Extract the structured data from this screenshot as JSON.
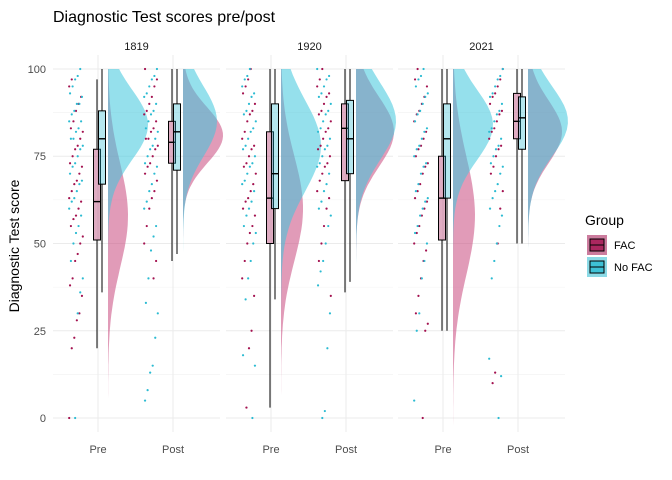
{
  "chart_data": {
    "type": "raincloud",
    "title": "Diagnostic Test scores pre/post",
    "xlabel": "",
    "ylabel": "Diagnostic Test score",
    "ylim": [
      0,
      100
    ],
    "yticks": [
      0,
      25,
      50,
      75,
      100
    ],
    "categories": [
      "Pre",
      "Post"
    ],
    "facets": [
      "1819",
      "1920",
      "2021"
    ],
    "grid": true,
    "legend": {
      "title": "Group",
      "position": "right",
      "entries": [
        {
          "name": "FAC",
          "color": "#a3114f"
        },
        {
          "name": "No FAC",
          "color": "#2bbbd2"
        }
      ]
    },
    "panels": [
      {
        "facet": "1819",
        "boxes": [
          {
            "time": "Pre",
            "group": "FAC",
            "min": 20,
            "q1": 51,
            "median": 62,
            "q3": 77,
            "max": 97
          },
          {
            "time": "Pre",
            "group": "No FAC",
            "min": 36,
            "q1": 67,
            "median": 80,
            "q3": 88,
            "max": 100
          },
          {
            "time": "Post",
            "group": "FAC",
            "min": 45,
            "q1": 73,
            "median": 79,
            "q3": 85,
            "max": 100
          },
          {
            "time": "Post",
            "group": "No FAC",
            "min": 47,
            "q1": 71,
            "median": 82,
            "q3": 90,
            "max": 100
          }
        ],
        "densities": [
          {
            "time": "Pre",
            "group": "FAC",
            "mode": 58,
            "sd": 15,
            "peak": 0.5,
            "lo": 4,
            "hi": 100
          },
          {
            "time": "Pre",
            "group": "No FAC",
            "mode": 84,
            "sd": 10,
            "peak": 1.0,
            "lo": 36,
            "hi": 100
          },
          {
            "time": "Post",
            "group": "FAC",
            "mode": 81,
            "sd": 8,
            "peak": 1.0,
            "lo": 45,
            "hi": 100
          },
          {
            "time": "Post",
            "group": "No FAC",
            "mode": 85,
            "sd": 10,
            "peak": 0.85,
            "lo": 10,
            "hi": 100
          }
        ],
        "points": {
          "Pre": {
            "FAC": [
              0,
              20,
              23,
              28,
              30,
              35,
              38,
              40,
              45,
              47,
              50,
              52,
              55,
              57,
              58,
              60,
              62,
              63,
              65,
              67,
              68,
              70,
              72,
              73,
              75,
              77,
              78,
              80,
              82,
              83,
              85,
              88,
              90,
              92,
              95,
              97
            ],
            "No FAC": [
              0,
              30,
              36,
              40,
              45,
              50,
              53,
              55,
              58,
              60,
              62,
              63,
              65,
              67,
              68,
              70,
              72,
              73,
              75,
              77,
              78,
              80,
              80,
              82,
              83,
              85,
              85,
              87,
              88,
              90,
              90,
              92,
              93,
              95,
              97,
              98,
              100
            ]
          },
          "Post": {
            "FAC": [
              40,
              45,
              50,
              55,
              60,
              63,
              65,
              68,
              70,
              72,
              73,
              75,
              77,
              78,
              80,
              80,
              82,
              83,
              85,
              87,
              88,
              90,
              92,
              95,
              97,
              100
            ],
            "No FAC": [
              5,
              8,
              13,
              15,
              23,
              30,
              33,
              40,
              48,
              52,
              55,
              60,
              62,
              65,
              67,
              70,
              72,
              73,
              75,
              77,
              78,
              80,
              82,
              83,
              85,
              87,
              88,
              90,
              92,
              93,
              95,
              97,
              98,
              100
            ]
          }
        }
      },
      {
        "facet": "1920",
        "boxes": [
          {
            "time": "Pre",
            "group": "FAC",
            "min": 3,
            "q1": 50,
            "median": 63,
            "q3": 82,
            "max": 100
          },
          {
            "time": "Pre",
            "group": "No FAC",
            "min": 34,
            "q1": 60,
            "median": 70,
            "q3": 90,
            "max": 100
          },
          {
            "time": "Post",
            "group": "FAC",
            "min": 36,
            "q1": 68,
            "median": 83,
            "q3": 90,
            "max": 100
          },
          {
            "time": "Post",
            "group": "No FAC",
            "min": 39,
            "q1": 70,
            "median": 80,
            "q3": 91,
            "max": 100
          }
        ],
        "densities": [
          {
            "time": "Pre",
            "group": "FAC",
            "mode": 60,
            "sd": 15,
            "peak": 0.55,
            "lo": -2,
            "hi": 100
          },
          {
            "time": "Pre",
            "group": "No FAC",
            "mode": 78,
            "sd": 13,
            "peak": 1.0,
            "lo": -2,
            "hi": 100
          },
          {
            "time": "Post",
            "group": "FAC",
            "mode": 82,
            "sd": 10,
            "peak": 0.95,
            "lo": 20,
            "hi": 100
          },
          {
            "time": "Post",
            "group": "No FAC",
            "mode": 85,
            "sd": 11,
            "peak": 1.0,
            "lo": -2,
            "hi": 100
          }
        ],
        "points": {
          "Pre": {
            "FAC": [
              3,
              20,
              25,
              35,
              40,
              45,
              50,
              53,
              55,
              58,
              60,
              62,
              63,
              65,
              67,
              70,
              72,
              73,
              75,
              77,
              78,
              80,
              82,
              85,
              87,
              88,
              90,
              93,
              95,
              97,
              100
            ],
            "No FAC": [
              0,
              15,
              18,
              34,
              40,
              45,
              50,
              53,
              55,
              58,
              60,
              62,
              65,
              67,
              68,
              70,
              72,
              73,
              75,
              77,
              78,
              80,
              82,
              83,
              85,
              87,
              88,
              90,
              92,
              93,
              95,
              97,
              98,
              100
            ]
          },
          "Post": {
            "FAC": [
              35,
              45,
              50,
              55,
              60,
              63,
              65,
              68,
              70,
              72,
              73,
              75,
              77,
              78,
              80,
              82,
              83,
              85,
              87,
              88,
              90,
              92,
              93,
              95,
              97,
              100
            ],
            "No FAC": [
              0,
              2,
              20,
              30,
              38,
              42,
              45,
              50,
              55,
              58,
              60,
              62,
              65,
              67,
              70,
              72,
              73,
              75,
              77,
              78,
              80,
              82,
              83,
              85,
              87,
              88,
              90,
              92,
              93,
              95,
              97,
              98,
              100
            ]
          }
        }
      },
      {
        "facet": "2021",
        "boxes": [
          {
            "time": "Pre",
            "group": "FAC",
            "min": 25,
            "q1": 51,
            "median": 63,
            "q3": 75,
            "max": 100
          },
          {
            "time": "Pre",
            "group": "No FAC",
            "min": 25,
            "q1": 63,
            "median": 80,
            "q3": 90,
            "max": 100
          },
          {
            "time": "Post",
            "group": "FAC",
            "min": 50,
            "q1": 80,
            "median": 85,
            "q3": 93,
            "max": 100
          },
          {
            "time": "Post",
            "group": "No FAC",
            "min": 50,
            "q1": 77,
            "median": 86,
            "q3": 92,
            "max": 100
          }
        ],
        "densities": [
          {
            "time": "Pre",
            "group": "FAC",
            "mode": 58,
            "sd": 17,
            "peak": 0.55,
            "lo": -4,
            "hi": 100
          },
          {
            "time": "Pre",
            "group": "No FAC",
            "mode": 84,
            "sd": 10,
            "peak": 1.0,
            "lo": -4,
            "hi": 100
          },
          {
            "time": "Post",
            "group": "FAC",
            "mode": 82,
            "sd": 9,
            "peak": 0.85,
            "lo": 41,
            "hi": 100
          },
          {
            "time": "Post",
            "group": "No FAC",
            "mode": 85,
            "sd": 10,
            "peak": 1.0,
            "lo": -4,
            "hi": 100
          }
        ],
        "points": {
          "Pre": {
            "FAC": [
              0,
              25,
              27,
              30,
              35,
              40,
              45,
              48,
              50,
              53,
              55,
              58,
              60,
              62,
              63,
              65,
              67,
              70,
              72,
              73,
              75,
              77,
              78,
              80,
              82,
              85,
              87,
              88,
              90,
              92,
              95,
              97,
              100
            ],
            "No FAC": [
              5,
              25,
              30,
              40,
              45,
              50,
              53,
              55,
              58,
              60,
              62,
              63,
              65,
              67,
              70,
              72,
              73,
              75,
              77,
              78,
              80,
              82,
              83,
              85,
              87,
              88,
              90,
              92,
              93,
              95,
              97,
              98,
              100
            ]
          },
          "Post": {
            "FAC": [
              10,
              13,
              50,
              60,
              65,
              70,
              72,
              75,
              77,
              78,
              80,
              82,
              83,
              85,
              87,
              88,
              90,
              92,
              93,
              95,
              97,
              100
            ],
            "No FAC": [
              0,
              12,
              17,
              40,
              45,
              50,
              55,
              58,
              60,
              63,
              65,
              67,
              70,
              72,
              73,
              75,
              77,
              78,
              80,
              82,
              83,
              85,
              87,
              88,
              90,
              92,
              93,
              95,
              97,
              98,
              100
            ]
          }
        }
      }
    ]
  }
}
